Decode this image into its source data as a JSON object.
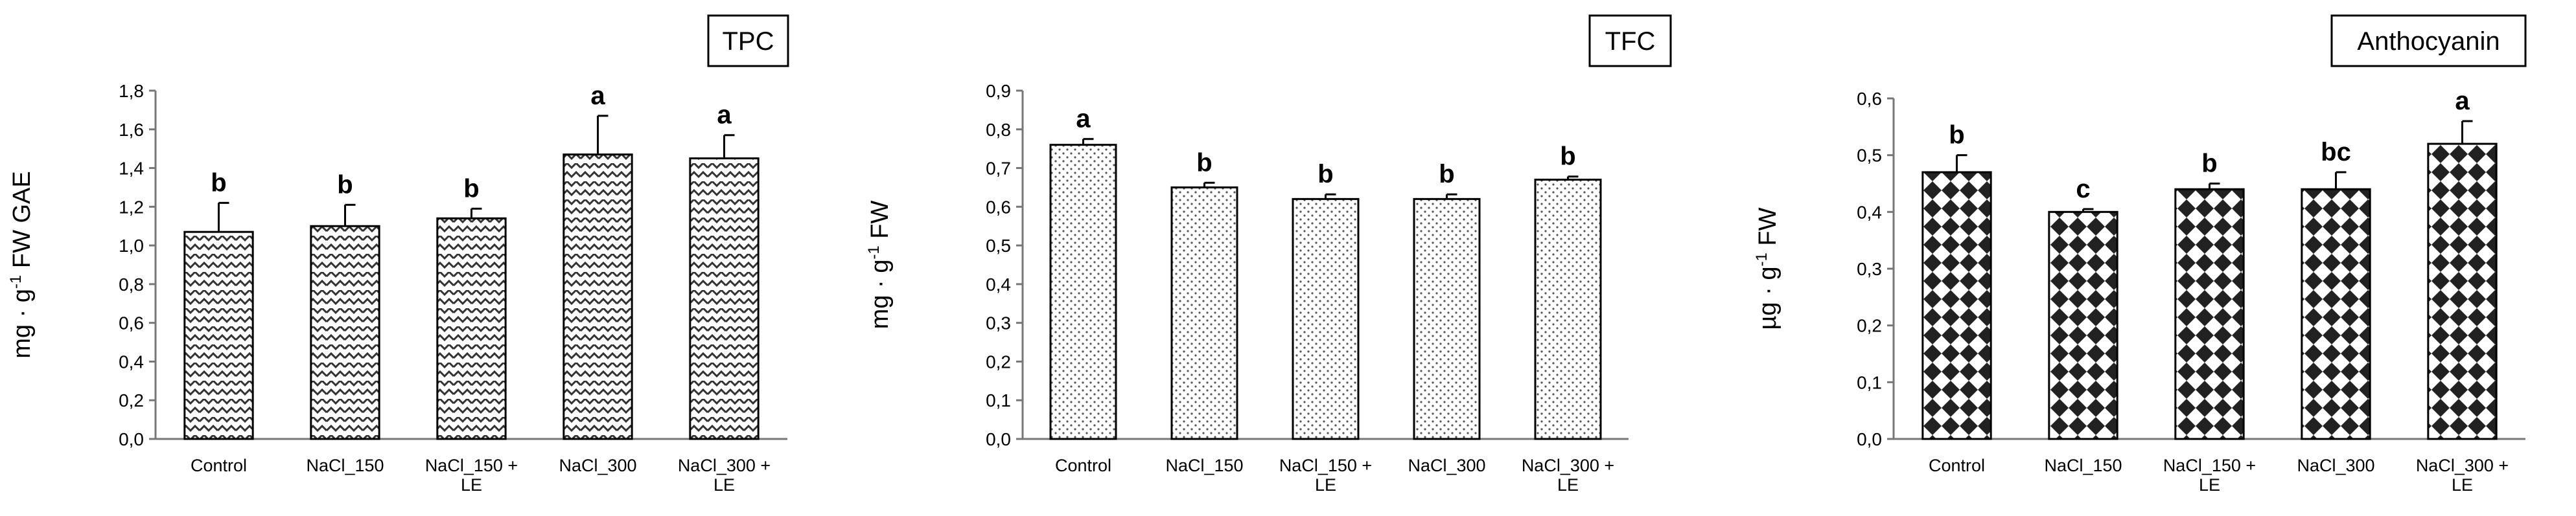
{
  "chart_data": [
    {
      "type": "bar",
      "title": "TPC",
      "ylabel": "mg · g-1 FW GAE",
      "ylabel_parts": [
        "mg · g",
        "-1",
        " FW GAE"
      ],
      "categories": [
        [
          "Control"
        ],
        [
          "NaCl_150"
        ],
        [
          "NaCl_150 +",
          "LE"
        ],
        [
          "NaCl_300"
        ],
        [
          "NaCl_300 +",
          "LE"
        ]
      ],
      "values": [
        1.07,
        1.1,
        1.14,
        1.47,
        1.45
      ],
      "errors": [
        0.15,
        0.11,
        0.05,
        0.2,
        0.12
      ],
      "letters": [
        "b",
        "b",
        "b",
        "a",
        "a"
      ],
      "ylim": [
        0,
        1.8
      ],
      "yticks": [
        "0,0",
        "0,2",
        "0,4",
        "0,6",
        "0,8",
        "1,0",
        "1,2",
        "1,4",
        "1,6",
        "1,8"
      ],
      "pattern": "zigzag",
      "grid": false
    },
    {
      "type": "bar",
      "title": "TFC",
      "ylabel": "mg · g-1 FW",
      "ylabel_parts": [
        "mg · g",
        "-1",
        " FW"
      ],
      "categories": [
        [
          "Control"
        ],
        [
          "NaCl_150"
        ],
        [
          "NaCl_150 +",
          "LE"
        ],
        [
          "NaCl_300"
        ],
        [
          "NaCl_300 +",
          "LE"
        ]
      ],
      "values": [
        0.76,
        0.65,
        0.62,
        0.62,
        0.67
      ],
      "errors": [
        0.015,
        0.012,
        0.012,
        0.012,
        0.008
      ],
      "letters": [
        "a",
        "b",
        "b",
        "b",
        "b"
      ],
      "ylim": [
        0,
        0.9
      ],
      "yticks": [
        "0,0",
        "0,1",
        "0,2",
        "0,3",
        "0,4",
        "0,5",
        "0,6",
        "0,7",
        "0,8",
        "0,9"
      ],
      "pattern": "dots",
      "grid": false
    },
    {
      "type": "bar",
      "title": "Anthocyanin",
      "ylabel": "µg · g-1 FW",
      "ylabel_parts": [
        "µg · g",
        "-1",
        " FW"
      ],
      "categories": [
        [
          "Control"
        ],
        [
          "NaCl_150"
        ],
        [
          "NaCl_150 +",
          "LE"
        ],
        [
          "NaCl_300"
        ],
        [
          "NaCl_300 +",
          "LE"
        ]
      ],
      "values": [
        0.47,
        0.4,
        0.44,
        0.44,
        0.52
      ],
      "errors": [
        0.03,
        0.005,
        0.01,
        0.03,
        0.04
      ],
      "letters": [
        "b",
        "c",
        "b",
        "bc",
        "a"
      ],
      "ylim": [
        0,
        0.6
      ],
      "yticks": [
        "0,0",
        "0,1",
        "0,2",
        "0,3",
        "0,4",
        "0,5",
        "0,6"
      ],
      "pattern": "diamonds",
      "grid": false
    }
  ]
}
